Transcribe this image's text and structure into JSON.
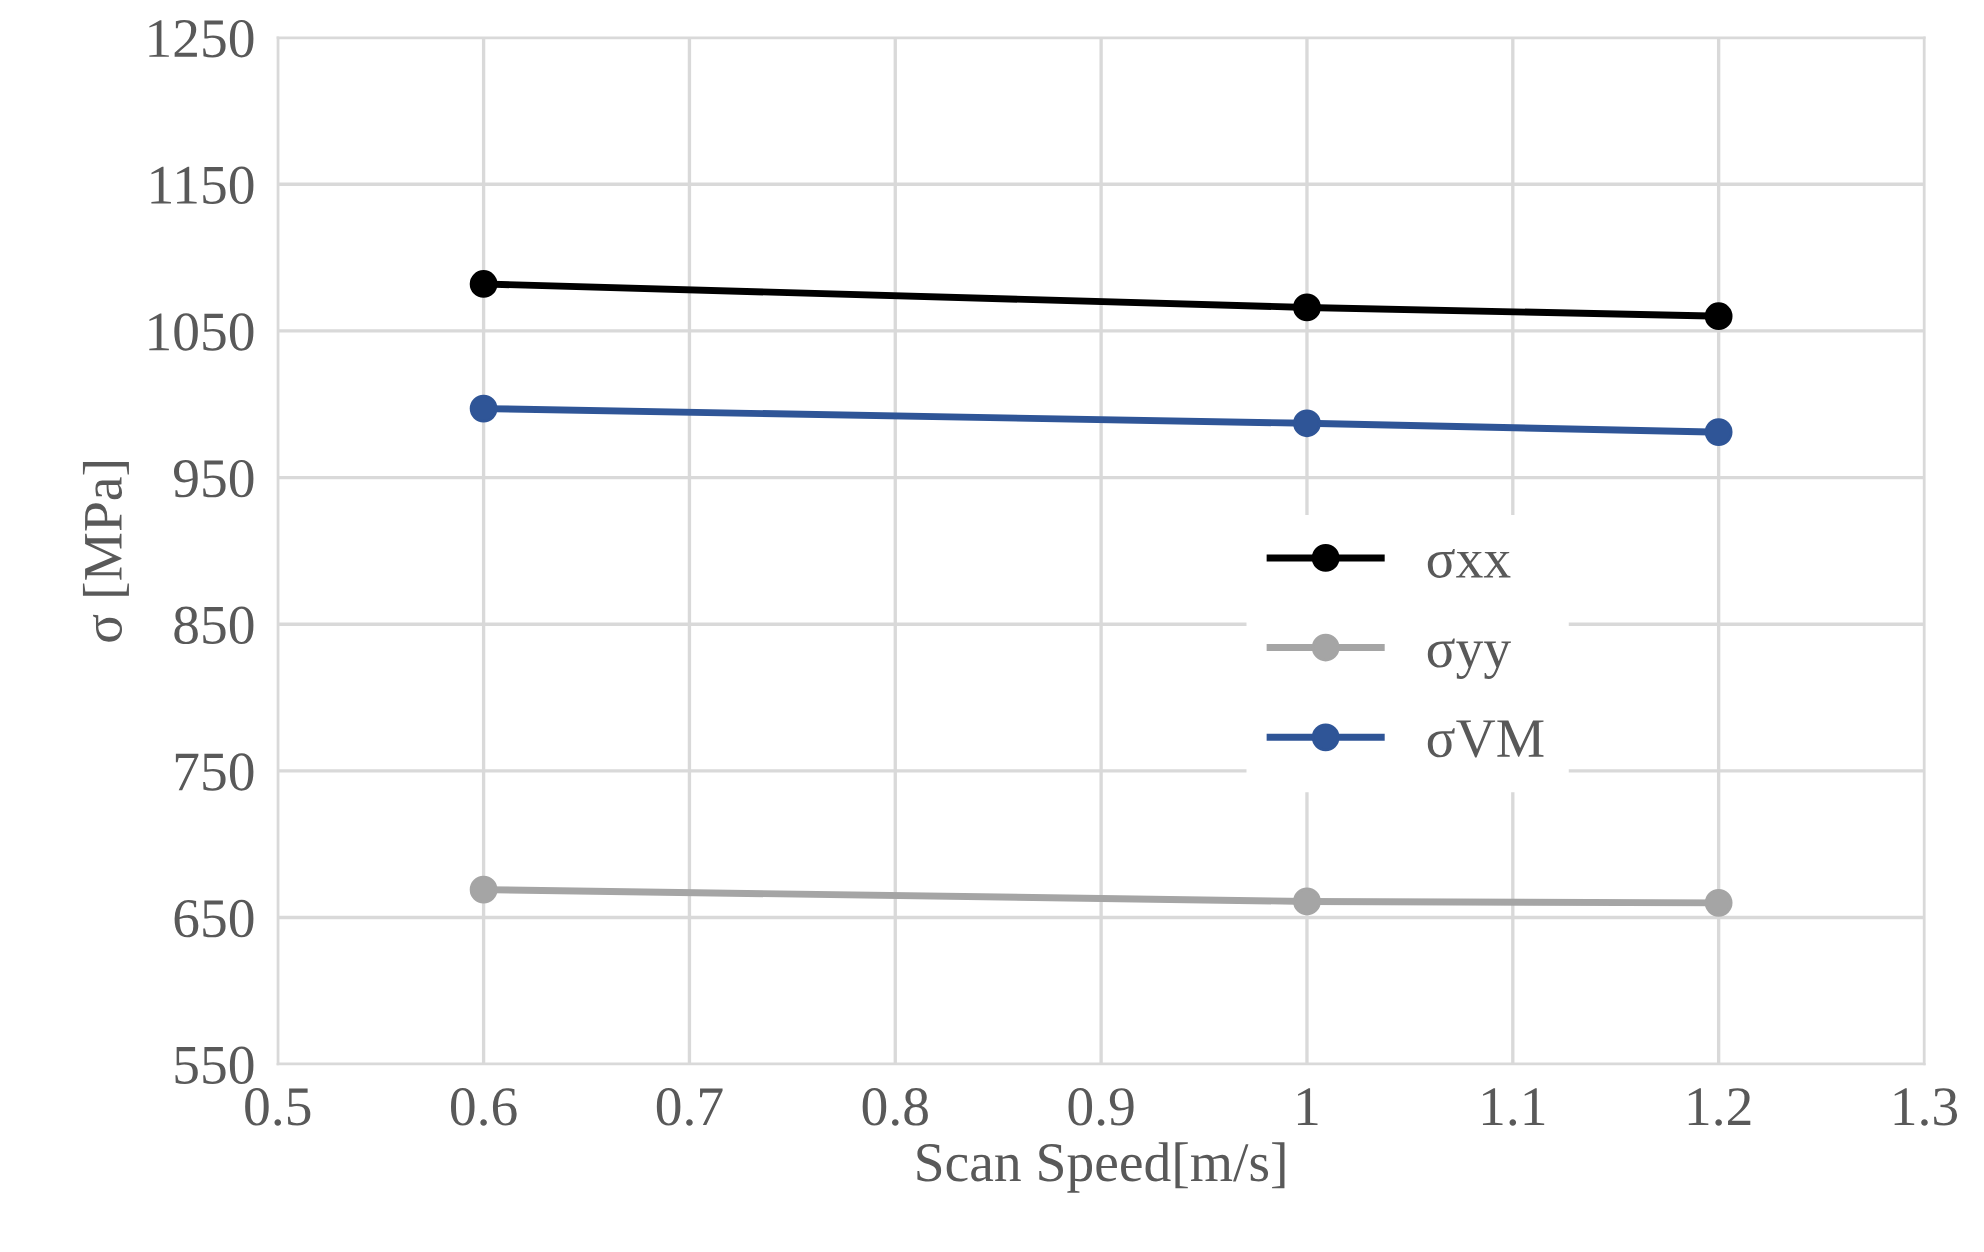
{
  "chart_data": {
    "type": "line",
    "xlabel": "Scan Speed[m/s]",
    "ylabel": "σ [MPa]",
    "x": [
      0.6,
      1,
      1.2
    ],
    "series": [
      {
        "name": "σxx",
        "color": "#000000",
        "values": [
          1082,
          1066,
          1060
        ]
      },
      {
        "name": "σyy",
        "color": "#a5a5a5",
        "values": [
          669,
          661,
          660
        ]
      },
      {
        "name": "σVM",
        "color": "#2f5597",
        "values": [
          997,
          987,
          981
        ]
      }
    ],
    "xlim": [
      0.5,
      1.3
    ],
    "xticks": [
      0.5,
      0.6,
      0.7,
      0.8,
      0.9,
      1,
      1.1,
      1.2,
      1.3
    ],
    "ylim": [
      550,
      1250
    ],
    "yticks": [
      550,
      650,
      750,
      850,
      950,
      1050,
      1150,
      1250
    ],
    "grid": true,
    "legend": "center right",
    "marker": "circle",
    "line_style": "solid"
  }
}
